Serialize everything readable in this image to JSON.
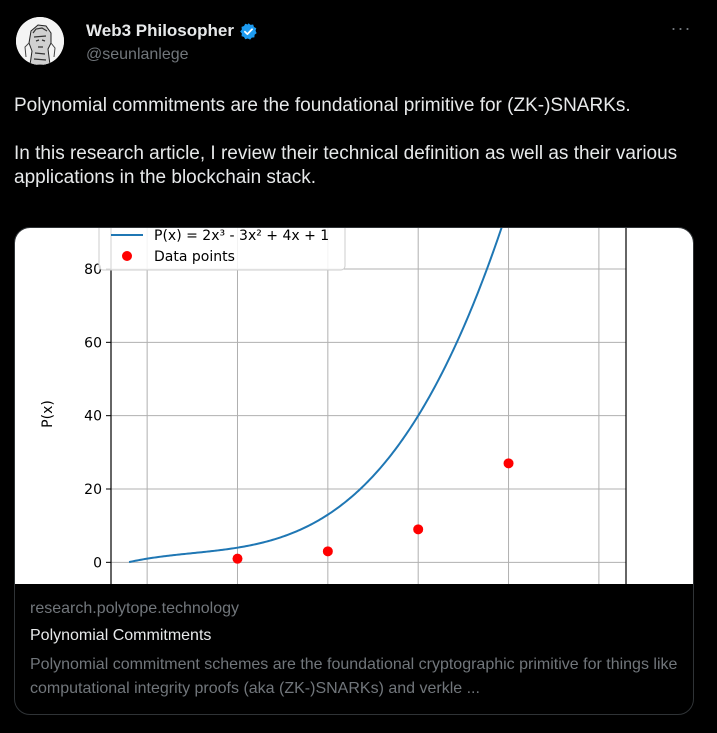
{
  "author": {
    "display_name": "Web3 Philosopher",
    "handle": "@seunlanlege",
    "verified": true
  },
  "more_label": "···",
  "tweet_text": "Polynomial commitments are the foundational primitive for (ZK-)SNARKs.\n\nIn this research article, I review their technical definition as well as their various applications in the blockchain stack.",
  "card": {
    "domain": "research.polytope.technology",
    "title": "Polynomial Commitments",
    "description": "Polynomial commitment schemes are the foundational cryptographic primitive for things like computational integrity proofs (aka (ZK-)SNARKs) and verkle ..."
  },
  "chart_data": {
    "type": "line",
    "ylabel": "P(x)",
    "yticks": [
      0,
      20,
      40,
      60,
      80
    ],
    "xlim": [
      -0.4,
      5.3
    ],
    "ylim": [
      -7,
      98
    ],
    "xgrid": [
      0,
      1,
      2,
      3,
      4,
      5
    ],
    "grid": true,
    "legend_position": "top-left",
    "series": [
      {
        "name": "P(x) = 2x³ - 3x² + 4x + 1",
        "type": "line",
        "color": "#1f77b4",
        "coefficients": [
          2,
          -3,
          4,
          1
        ]
      },
      {
        "name": "Data points",
        "type": "scatter",
        "color": "#ff0000",
        "x": [
          1,
          2,
          3,
          4
        ],
        "y": [
          1,
          3,
          9,
          27
        ]
      }
    ]
  },
  "colors": {
    "background": "#000000",
    "text": "#e7e9ea",
    "secondary": "#71767b",
    "border": "#2f3336",
    "verified": "#1d9bf0"
  }
}
